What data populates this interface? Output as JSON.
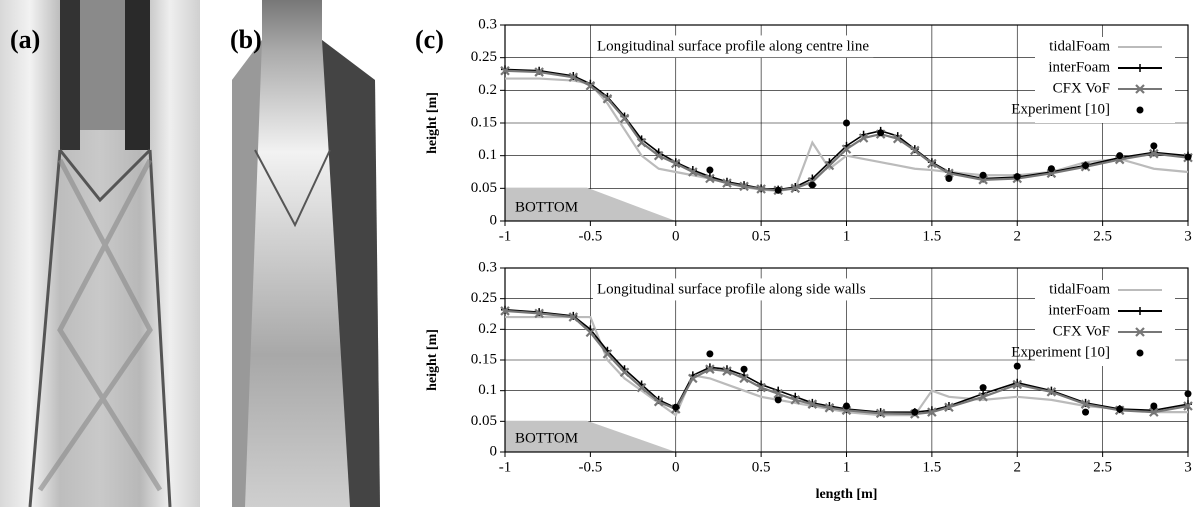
{
  "panel_labels": [
    "(a)",
    "(b)",
    "(c)"
  ],
  "chart_data": [
    {
      "type": "line",
      "title": "Longitudinal surface profile along centre line",
      "annotation": "BOTTOM",
      "ylabel": "height [m]",
      "xlim": [
        -1,
        3
      ],
      "xticks": [
        -1,
        -0.5,
        0,
        0.5,
        1,
        1.5,
        2,
        2.5,
        3
      ],
      "ylim": [
        0,
        0.3
      ],
      "yticks": [
        0,
        0.05,
        0.1,
        0.15,
        0.2,
        0.25,
        0.3
      ],
      "grid": true,
      "legend": "upper right",
      "series": [
        {
          "name": "tidalFoam",
          "color": "#bbbbbb",
          "marker": "none",
          "x": [
            -1,
            -0.8,
            -0.6,
            -0.5,
            -0.4,
            -0.3,
            -0.2,
            -0.1,
            0,
            0.1,
            0.2,
            0.3,
            0.4,
            0.5,
            0.6,
            0.7,
            0.8,
            0.9,
            1,
            1.1,
            1.2,
            1.3,
            1.4,
            1.5,
            1.6,
            1.8,
            2,
            2.2,
            2.4,
            2.6,
            2.8,
            3
          ],
          "values": [
            0.218,
            0.218,
            0.215,
            0.21,
            0.18,
            0.14,
            0.1,
            0.08,
            0.075,
            0.07,
            0.065,
            0.058,
            0.052,
            0.048,
            0.046,
            0.05,
            0.12,
            0.08,
            0.1,
            0.095,
            0.09,
            0.085,
            0.08,
            0.078,
            0.075,
            0.07,
            0.07,
            0.075,
            0.09,
            0.095,
            0.08,
            0.075
          ]
        },
        {
          "name": "interFoam",
          "color": "#000000",
          "marker": "plus",
          "x": [
            -1,
            -0.8,
            -0.6,
            -0.5,
            -0.4,
            -0.3,
            -0.2,
            -0.1,
            0,
            0.1,
            0.2,
            0.3,
            0.4,
            0.5,
            0.6,
            0.7,
            0.8,
            0.9,
            1,
            1.1,
            1.2,
            1.3,
            1.4,
            1.5,
            1.6,
            1.8,
            2,
            2.2,
            2.4,
            2.6,
            2.8,
            3
          ],
          "values": [
            0.232,
            0.23,
            0.222,
            0.21,
            0.19,
            0.16,
            0.125,
            0.105,
            0.09,
            0.078,
            0.068,
            0.06,
            0.055,
            0.05,
            0.048,
            0.052,
            0.065,
            0.09,
            0.115,
            0.132,
            0.138,
            0.13,
            0.11,
            0.09,
            0.075,
            0.065,
            0.067,
            0.075,
            0.085,
            0.097,
            0.105,
            0.1
          ]
        },
        {
          "name": "CFX VoF",
          "color": "#777777",
          "marker": "cross",
          "x": [
            -1,
            -0.8,
            -0.6,
            -0.5,
            -0.4,
            -0.3,
            -0.2,
            -0.1,
            0,
            0.1,
            0.2,
            0.3,
            0.4,
            0.5,
            0.6,
            0.7,
            0.8,
            0.9,
            1,
            1.1,
            1.2,
            1.3,
            1.4,
            1.5,
            1.6,
            1.8,
            2,
            2.2,
            2.4,
            2.6,
            2.8,
            3
          ],
          "values": [
            0.23,
            0.228,
            0.22,
            0.207,
            0.187,
            0.157,
            0.12,
            0.1,
            0.088,
            0.075,
            0.065,
            0.058,
            0.053,
            0.049,
            0.047,
            0.05,
            0.06,
            0.085,
            0.11,
            0.127,
            0.133,
            0.126,
            0.108,
            0.088,
            0.073,
            0.063,
            0.065,
            0.073,
            0.083,
            0.094,
            0.103,
            0.097
          ]
        },
        {
          "name": "Experiment [10]",
          "color": "#000000",
          "marker": "dot",
          "line": false,
          "x": [
            0.2,
            0.6,
            0.8,
            1,
            1.2,
            1.6,
            1.8,
            2,
            2.2,
            2.4,
            2.6,
            2.8,
            3
          ],
          "values": [
            0.078,
            0.047,
            0.055,
            0.15,
            0.135,
            0.065,
            0.07,
            0.068,
            0.08,
            0.085,
            0.1,
            0.115,
            0.098
          ]
        }
      ]
    },
    {
      "type": "line",
      "title": "Longitudinal surface profile along side walls",
      "annotation": "BOTTOM",
      "ylabel": "height [m]",
      "xlabel": "length [m]",
      "xlim": [
        -1,
        3
      ],
      "xticks": [
        -1,
        -0.5,
        0,
        0.5,
        1,
        1.5,
        2,
        2.5,
        3
      ],
      "ylim": [
        0,
        0.3
      ],
      "yticks": [
        0,
        0.05,
        0.1,
        0.15,
        0.2,
        0.25,
        0.3
      ],
      "grid": true,
      "legend": "upper right",
      "series": [
        {
          "name": "tidalFoam",
          "color": "#bbbbbb",
          "marker": "none",
          "x": [
            -1,
            -0.8,
            -0.6,
            -0.5,
            -0.4,
            -0.3,
            -0.2,
            -0.1,
            0,
            0.1,
            0.2,
            0.3,
            0.4,
            0.5,
            0.6,
            0.7,
            0.8,
            0.9,
            1,
            1.2,
            1.4,
            1.5,
            1.6,
            1.8,
            2,
            2.2,
            2.4,
            2.6,
            2.8,
            3
          ],
          "values": [
            0.22,
            0.22,
            0.22,
            0.22,
            0.15,
            0.12,
            0.1,
            0.08,
            0.06,
            0.125,
            0.12,
            0.11,
            0.1,
            0.09,
            0.085,
            0.08,
            0.075,
            0.07,
            0.065,
            0.06,
            0.06,
            0.1,
            0.09,
            0.085,
            0.09,
            0.085,
            0.075,
            0.07,
            0.065,
            0.065
          ]
        },
        {
          "name": "interFoam",
          "color": "#000000",
          "marker": "plus",
          "x": [
            -1,
            -0.8,
            -0.6,
            -0.5,
            -0.4,
            -0.3,
            -0.2,
            -0.1,
            0,
            0.1,
            0.2,
            0.3,
            0.4,
            0.5,
            0.6,
            0.7,
            0.8,
            0.9,
            1,
            1.2,
            1.4,
            1.5,
            1.6,
            1.8,
            2,
            2.2,
            2.4,
            2.6,
            2.8,
            3
          ],
          "values": [
            0.232,
            0.228,
            0.222,
            0.2,
            0.165,
            0.135,
            0.11,
            0.085,
            0.072,
            0.125,
            0.138,
            0.135,
            0.125,
            0.11,
            0.1,
            0.09,
            0.08,
            0.075,
            0.07,
            0.065,
            0.065,
            0.068,
            0.075,
            0.095,
            0.113,
            0.1,
            0.08,
            0.07,
            0.068,
            0.078
          ]
        },
        {
          "name": "CFX VoF",
          "color": "#777777",
          "marker": "cross",
          "x": [
            -1,
            -0.8,
            -0.6,
            -0.5,
            -0.4,
            -0.3,
            -0.2,
            -0.1,
            0,
            0.1,
            0.2,
            0.3,
            0.4,
            0.5,
            0.6,
            0.7,
            0.8,
            0.9,
            1,
            1.2,
            1.4,
            1.5,
            1.6,
            1.8,
            2,
            2.2,
            2.4,
            2.6,
            2.8,
            3
          ],
          "values": [
            0.23,
            0.226,
            0.22,
            0.195,
            0.16,
            0.13,
            0.105,
            0.082,
            0.07,
            0.12,
            0.135,
            0.132,
            0.12,
            0.105,
            0.095,
            0.085,
            0.078,
            0.072,
            0.068,
            0.063,
            0.062,
            0.065,
            0.073,
            0.09,
            0.11,
            0.098,
            0.078,
            0.068,
            0.065,
            0.075
          ]
        },
        {
          "name": "Experiment [10]",
          "color": "#000000",
          "marker": "dot",
          "line": false,
          "x": [
            0,
            0.2,
            0.4,
            0.6,
            1,
            1.4,
            1.8,
            2,
            2.4,
            2.6,
            2.8,
            3
          ],
          "values": [
            0.073,
            0.16,
            0.135,
            0.085,
            0.075,
            0.065,
            0.105,
            0.14,
            0.065,
            0.07,
            0.075,
            0.095
          ]
        }
      ]
    }
  ]
}
